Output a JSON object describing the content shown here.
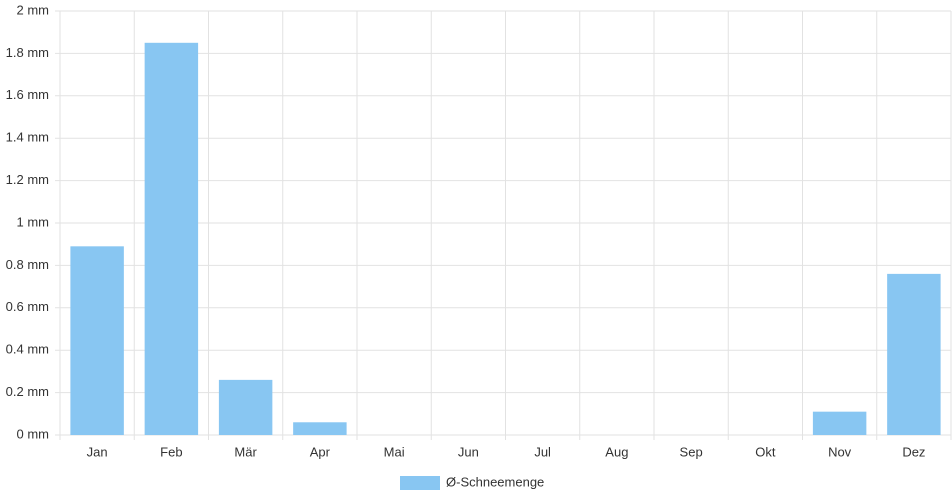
{
  "chart_data": {
    "type": "bar",
    "categories": [
      "Jan",
      "Feb",
      "Mär",
      "Apr",
      "Mai",
      "Jun",
      "Jul",
      "Aug",
      "Sep",
      "Okt",
      "Nov",
      "Dez"
    ],
    "series": [
      {
        "name": "Ø-Schneemenge",
        "color": "#88c6f2",
        "values": [
          0.89,
          1.85,
          0.26,
          0.06,
          0,
          0,
          0,
          0,
          0,
          0,
          0.11,
          0.76
        ]
      }
    ],
    "ylim": [
      0,
      2
    ],
    "yticks": [
      {
        "value": 0,
        "label": "0 mm"
      },
      {
        "value": 0.2,
        "label": "0.2 mm"
      },
      {
        "value": 0.4,
        "label": "0.4 mm"
      },
      {
        "value": 0.6,
        "label": "0.6 mm"
      },
      {
        "value": 0.8,
        "label": "0.8 mm"
      },
      {
        "value": 1,
        "label": "1 mm"
      },
      {
        "value": 1.2,
        "label": "1.2 mm"
      },
      {
        "value": 1.4,
        "label": "1.4 mm"
      },
      {
        "value": 1.6,
        "label": "1.6 mm"
      },
      {
        "value": 1.8,
        "label": "1.8 mm"
      },
      {
        "value": 2,
        "label": "2 mm"
      }
    ],
    "grid": true
  }
}
